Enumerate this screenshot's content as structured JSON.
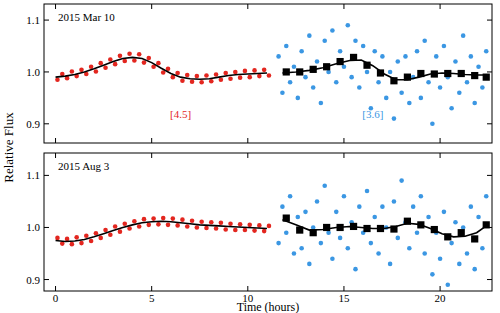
{
  "chart_data": [
    {
      "type": "scatter",
      "title": "2015 Mar 10",
      "y_label": "Relative Flux",
      "xlim": [
        -0.6,
        22.7
      ],
      "xticks": [
        0,
        5,
        10,
        15,
        20
      ],
      "ylim": [
        0.863,
        1.131
      ],
      "yticks": [
        {
          "value": 0.9,
          "label": "0.9"
        },
        {
          "value": 1,
          "label": "1.0"
        },
        {
          "value": 1.1,
          "label": "1.1"
        }
      ],
      "tick_labels": "y",
      "annotations": [
        {
          "text": "[4.5]",
          "x": 6.5,
          "y": 0.912,
          "color": "#e3261f"
        },
        {
          "text": "[3.6]",
          "x": 16.5,
          "y": 0.912,
          "color": "#3b97e3"
        }
      ],
      "series": [
        {
          "type": "scatter",
          "color": "#e3261f",
          "marker": "circle",
          "x": [
            0.1,
            0.35,
            0.6,
            0.85,
            1.1,
            1.35,
            1.6,
            1.85,
            2.1,
            2.35,
            2.6,
            2.85,
            3.1,
            3.35,
            3.6,
            3.85,
            4.1,
            4.35,
            4.6,
            4.85,
            5.1,
            5.35,
            5.6,
            5.85,
            6.1,
            6.35,
            6.6,
            6.85,
            7.1,
            7.35,
            7.6,
            7.85,
            8.1,
            8.35,
            8.6,
            8.85,
            9.1,
            9.35,
            9.6,
            9.85,
            10.1,
            10.35,
            10.6,
            10.85,
            11.1
          ],
          "values": [
            0.985,
            0.996,
            0.988,
            1.001,
            0.992,
            1.004,
            0.996,
            1.01,
            1.001,
            1.017,
            1.008,
            1.024,
            1.015,
            1.031,
            1.021,
            1.035,
            1.022,
            1.034,
            1.018,
            1.027,
            1.01,
            1.017,
            0.999,
            1.006,
            0.99,
            0.998,
            0.983,
            0.994,
            0.981,
            0.992,
            0.98,
            0.993,
            0.982,
            0.995,
            0.985,
            0.998,
            0.987,
            1.0,
            0.989,
            1.002,
            0.99,
            1.003,
            0.992,
            1.004,
            0.993
          ]
        },
        {
          "type": "line",
          "color": "#000000",
          "line_style": "solid",
          "x": [
            0,
            0.5,
            1,
            1.5,
            2,
            2.5,
            3,
            3.5,
            4,
            4.5,
            5,
            5.5,
            6,
            6.5,
            7,
            7.5,
            8,
            8.5,
            9,
            9.5,
            10,
            10.5,
            11
          ],
          "values": [
            0.99,
            0.992,
            0.995,
            1.0,
            1.006,
            1.013,
            1.02,
            1.026,
            1.028,
            1.026,
            1.018,
            1.007,
            0.997,
            0.99,
            0.987,
            0.986,
            0.987,
            0.99,
            0.993,
            0.995,
            0.996,
            0.997,
            0.998
          ]
        },
        {
          "type": "scatter",
          "color": "#3b97e3",
          "marker": "circle",
          "x": [
            11.6,
            11.8,
            12.0,
            12.2,
            12.4,
            12.6,
            12.8,
            13.0,
            13.2,
            13.4,
            13.6,
            13.8,
            14.0,
            14.2,
            14.4,
            14.6,
            14.8,
            15.0,
            15.2,
            15.4,
            15.6,
            15.8,
            16.0,
            16.2,
            16.4,
            16.6,
            16.8,
            17.0,
            17.2,
            17.4,
            17.6,
            17.8,
            18.0,
            18.2,
            18.4,
            18.6,
            18.8,
            19.0,
            19.2,
            19.4,
            19.6,
            19.8,
            20.0,
            20.2,
            20.4,
            20.6,
            20.8,
            21.0,
            21.2,
            21.4,
            21.6,
            21.8,
            22.0,
            22.2,
            22.4
          ],
          "values": [
            1.03,
            0.96,
            1.05,
            0.98,
            1.01,
            0.95,
            1.04,
            0.99,
            1.07,
            0.97,
            1.02,
            0.94,
            1.06,
            1.0,
            1.08,
            0.98,
            1.04,
            1.01,
            1.09,
            0.99,
            1.06,
            0.97,
            1.05,
            1.0,
            0.93,
            1.04,
            0.98,
            1.03,
            0.95,
            1.0,
            0.91,
            1.02,
            0.96,
            1.03,
            0.94,
            0.99,
            1.04,
            0.95,
            1.06,
            0.98,
            0.9,
            1.03,
            0.97,
            1.05,
            0.99,
            0.93,
            1.02,
            0.96,
            1.07,
            0.98,
            1.03,
            0.94,
            1.01,
            0.97,
            1.04
          ]
        },
        {
          "type": "line",
          "color": "#000000",
          "line_style": "solid",
          "x": [
            11.8,
            12.5,
            13.2,
            13.9,
            14.6,
            15.3,
            15.9,
            16.5,
            17.1,
            17.7,
            18.3,
            18.9,
            19.5,
            20.1,
            20.7,
            21.3,
            21.9,
            22.4
          ],
          "values": [
            0.998,
            1.0,
            1.003,
            1.008,
            1.016,
            1.022,
            1.023,
            1.012,
            0.996,
            0.985,
            0.985,
            0.99,
            0.996,
            0.998,
            0.997,
            0.995,
            0.994,
            0.994
          ]
        },
        {
          "type": "scatter",
          "color": "#000000",
          "marker": "square",
          "x": [
            12.0,
            12.7,
            13.4,
            14.1,
            14.8,
            15.5,
            16.2,
            16.9,
            17.6,
            18.3,
            19.0,
            19.7,
            20.4,
            21.1,
            21.8,
            22.4
          ],
          "values": [
            1.0,
            1.0,
            1.005,
            1.01,
            1.02,
            1.028,
            1.013,
            0.998,
            0.983,
            0.99,
            0.997,
            0.996,
            0.997,
            0.997,
            0.993,
            0.99
          ]
        }
      ]
    },
    {
      "type": "scatter",
      "title": "2015 Aug 3",
      "x_label": "Time (hours)",
      "xlim": [
        -0.6,
        22.7
      ],
      "xticks": [
        0,
        5,
        10,
        15,
        20
      ],
      "ylim": [
        0.878,
        1.143
      ],
      "yticks": [
        {
          "value": 0.9,
          "label": "0.9"
        },
        {
          "value": 1,
          "label": "1.0"
        },
        {
          "value": 1.1,
          "label": "1.1"
        }
      ],
      "series": [
        {
          "type": "scatter",
          "color": "#e3261f",
          "marker": "circle",
          "x": [
            0.1,
            0.35,
            0.6,
            0.85,
            1.1,
            1.35,
            1.6,
            1.85,
            2.1,
            2.35,
            2.6,
            2.85,
            3.1,
            3.35,
            3.6,
            3.85,
            4.1,
            4.35,
            4.6,
            4.85,
            5.1,
            5.35,
            5.6,
            5.85,
            6.1,
            6.35,
            6.6,
            6.85,
            7.1,
            7.35,
            7.6,
            7.85,
            8.1,
            8.35,
            8.6,
            8.85,
            9.1,
            9.35,
            9.6,
            9.85,
            10.1,
            10.35,
            10.6,
            10.85,
            11.1
          ],
          "values": [
            0.98,
            0.969,
            0.978,
            0.968,
            0.981,
            0.97,
            0.984,
            0.974,
            0.989,
            0.98,
            0.995,
            0.986,
            1.002,
            0.992,
            1.007,
            0.998,
            1.012,
            1.002,
            1.016,
            1.005,
            1.017,
            1.006,
            1.018,
            1.005,
            1.017,
            1.004,
            1.015,
            1.002,
            1.013,
            1.0,
            1.011,
            0.999,
            1.01,
            0.998,
            1.009,
            0.996,
            1.007,
            0.995,
            1.006,
            0.995,
            1.005,
            0.994,
            1.004,
            0.993,
            1.003
          ]
        },
        {
          "type": "line",
          "color": "#000000",
          "line_style": "solid",
          "x": [
            0,
            0.5,
            1,
            1.5,
            2,
            2.5,
            3,
            3.5,
            4,
            4.5,
            5,
            5.5,
            6,
            6.5,
            7,
            7.5,
            8,
            8.5,
            9,
            9.5,
            10,
            10.5,
            11
          ],
          "values": [
            0.975,
            0.973,
            0.974,
            0.977,
            0.982,
            0.988,
            0.994,
            1.0,
            1.005,
            1.009,
            1.011,
            1.012,
            1.011,
            1.009,
            1.007,
            1.005,
            1.004,
            1.003,
            1.002,
            1.001,
            1.0,
            0.999,
            0.998
          ]
        },
        {
          "type": "scatter",
          "color": "#3b97e3",
          "marker": "circle",
          "x": [
            11.6,
            11.8,
            12.0,
            12.2,
            12.4,
            12.6,
            12.8,
            13.0,
            13.2,
            13.4,
            13.6,
            13.8,
            14.0,
            14.2,
            14.4,
            14.6,
            14.8,
            15.0,
            15.2,
            15.4,
            15.6,
            15.8,
            16.0,
            16.2,
            16.4,
            16.6,
            16.8,
            17.0,
            17.2,
            17.4,
            17.6,
            17.8,
            18.0,
            18.2,
            18.4,
            18.6,
            18.8,
            19.0,
            19.2,
            19.4,
            19.6,
            19.8,
            20.0,
            20.2,
            20.4,
            20.6,
            20.8,
            21.0,
            21.2,
            21.4,
            21.6,
            21.8,
            22.0,
            22.2,
            22.4
          ],
          "values": [
            0.97,
            1.04,
            0.99,
            1.06,
            0.95,
            1.02,
            0.96,
            1.03,
            0.93,
            1.0,
            1.05,
            0.97,
            1.08,
            0.99,
            0.94,
            1.03,
            0.98,
            1.06,
            0.96,
            1.01,
            0.92,
            1.04,
            0.99,
            1.07,
            0.97,
            1.02,
            0.95,
            1.04,
            1.0,
            0.93,
            1.05,
            0.98,
            1.09,
            1.01,
            0.96,
            1.04,
            0.99,
            1.06,
            0.95,
            1.02,
            0.91,
            0.99,
            0.94,
            1.03,
            0.89,
            0.97,
            1.01,
            0.93,
            1.0,
            0.95,
            1.04,
            0.92,
            1.02,
            0.96,
            1.06
          ]
        },
        {
          "type": "line",
          "color": "#000000",
          "line_style": "solid",
          "x": [
            11.8,
            12.5,
            13.2,
            13.9,
            14.6,
            15.3,
            15.9,
            16.5,
            17.1,
            17.7,
            18.3,
            18.9,
            19.5,
            20.1,
            20.7,
            21.3,
            21.9,
            22.4
          ],
          "values": [
            1.015,
            1.005,
            0.995,
            0.996,
            1.0,
            1.002,
            1.0,
            0.998,
            0.998,
            1.002,
            1.008,
            1.006,
            0.998,
            0.988,
            0.982,
            0.983,
            0.99,
            1.003
          ]
        },
        {
          "type": "scatter",
          "color": "#000000",
          "marker": "square",
          "x": [
            12.0,
            12.7,
            13.4,
            14.1,
            14.8,
            15.5,
            16.2,
            16.9,
            17.6,
            18.3,
            19.0,
            19.7,
            20.4,
            21.1,
            21.8,
            22.4
          ],
          "values": [
            1.018,
            0.995,
            0.99,
            1.0,
            1.0,
            1.002,
            0.998,
            0.998,
            0.997,
            1.012,
            1.005,
            0.996,
            0.982,
            0.99,
            0.978,
            1.005
          ]
        }
      ]
    }
  ]
}
